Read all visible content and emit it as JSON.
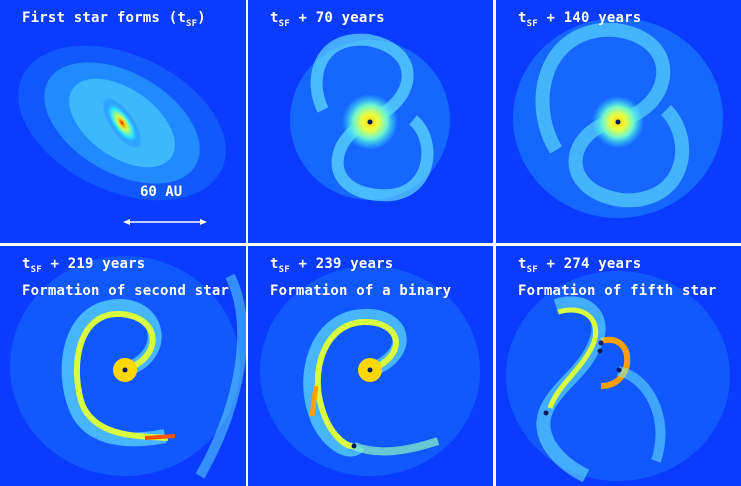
{
  "panels": [
    {
      "t_prefix": "First star forms (",
      "t_sym": "t",
      "t_sub": "SF",
      "t_suffix": ")",
      "line2": ""
    },
    {
      "t_prefix": "",
      "t_sym": "t",
      "t_sub": "SF",
      "t_suffix": " + 70 years",
      "line2": ""
    },
    {
      "t_prefix": "",
      "t_sym": "t",
      "t_sub": "SF",
      "t_suffix": " + 140 years",
      "line2": ""
    },
    {
      "t_prefix": "",
      "t_sym": "t",
      "t_sub": "SF",
      "t_suffix": " + 219 years",
      "line2": "Formation of second star"
    },
    {
      "t_prefix": "",
      "t_sym": "t",
      "t_sub": "SF",
      "t_suffix": " + 239 years",
      "line2": "Formation of a binary"
    },
    {
      "t_prefix": "",
      "t_sym": "t",
      "t_sub": "SF",
      "t_suffix": " + 274 years",
      "line2": "Formation of fifth star"
    }
  ],
  "scale_bar": {
    "label": "60 AU"
  },
  "colors": {
    "background": "#0a3cff",
    "disk": "#2fe6ff",
    "dense": "#ffe94a",
    "core": "#d4001e",
    "star": "#0b1a5a"
  }
}
